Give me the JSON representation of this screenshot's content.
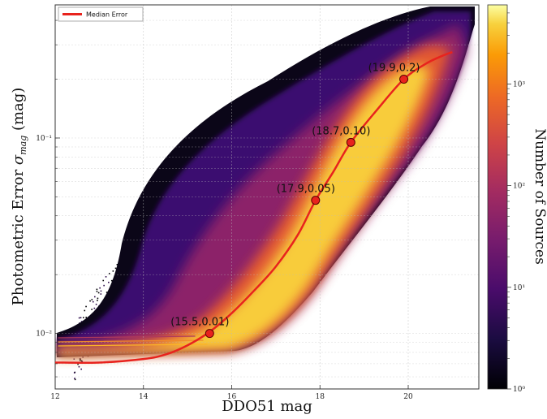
{
  "chart_data": {
    "type": "heatmap",
    "xlabel": "DDO51 mag",
    "ylabel_prefix": "Photometric Error ",
    "ylabel_sigma": "σ",
    "ylabel_sub": "mag",
    "ylabel_suffix": " (mag)",
    "xlim": [
      12,
      21.6
    ],
    "ylim": [
      0.0052,
      0.48
    ],
    "yscale": "log",
    "x_ticks": [
      12,
      14,
      16,
      18,
      20
    ],
    "x_tick_labels": [
      "12",
      "14",
      "16",
      "18",
      "20"
    ],
    "y_ticks": [
      0.01,
      0.1
    ],
    "y_tick_labels": [
      "10⁻²",
      "10⁻¹"
    ],
    "grid": true,
    "colormap": "inferno",
    "colorbar": {
      "label": "Number of Sources",
      "scale": "log",
      "range": [
        1,
        6000
      ],
      "ticks": [
        1,
        10,
        100,
        1000
      ],
      "tick_labels": [
        "10⁰",
        "10¹",
        "10²",
        "10³"
      ]
    },
    "legend": {
      "placement": "top-left",
      "entries": [
        "Median Error"
      ]
    },
    "median_curve": {
      "name": "Median Error",
      "color": "#e8231d",
      "x": [
        12.0,
        13.0,
        14.0,
        14.5,
        15.0,
        15.5,
        16.0,
        16.5,
        17.0,
        17.5,
        17.9,
        18.3,
        18.7,
        19.3,
        19.9,
        20.4,
        20.8,
        21.0
      ],
      "y": [
        0.0071,
        0.0071,
        0.0074,
        0.0078,
        0.0087,
        0.0102,
        0.0127,
        0.0165,
        0.022,
        0.032,
        0.048,
        0.067,
        0.095,
        0.14,
        0.2,
        0.24,
        0.265,
        0.275
      ]
    },
    "annotations": [
      {
        "x": 15.5,
        "y": 0.01,
        "label": "(15.5,0.01)"
      },
      {
        "x": 17.9,
        "y": 0.048,
        "label": "(17.9,0.05)"
      },
      {
        "x": 18.7,
        "y": 0.095,
        "label": "(18.7,0.10)"
      },
      {
        "x": 19.9,
        "y": 0.2,
        "label": "(19.9,0.2)"
      }
    ]
  }
}
